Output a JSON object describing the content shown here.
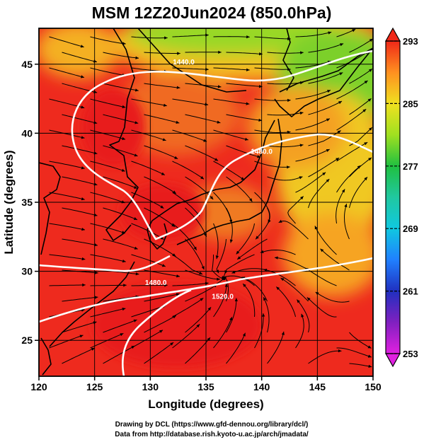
{
  "title": "MSM 12Z20Jun2024 (850.0hPa)",
  "map": {
    "xlabel": "Longitude (degrees)",
    "ylabel": "Latitude  (degrees)",
    "xlim": [
      120,
      150
    ],
    "ylim": [
      22.4,
      47.6
    ],
    "xticks": [
      120,
      125,
      130,
      135,
      140,
      145,
      150
    ],
    "yticks": [
      25,
      30,
      35,
      40,
      45
    ],
    "grid": true,
    "fill_field": "temperature (K)",
    "colors": {
      "cold": "#c000c0",
      "cool": "#0040ff",
      "mid": "#20c040",
      "warm": "#ffd000",
      "hot": "#ee2a1e",
      "contour": "#ffffff",
      "streamline": "#000000"
    }
  },
  "colorbar": {
    "min": 253,
    "max": 293,
    "ticks": [
      293,
      285,
      277,
      269,
      261,
      253
    ],
    "stops": [
      {
        "value": 253,
        "color": "#e020e0"
      },
      {
        "value": 257,
        "color": "#8020c0"
      },
      {
        "value": 261,
        "color": "#2030c0"
      },
      {
        "value": 265,
        "color": "#2080ff"
      },
      {
        "value": 269,
        "color": "#10c8e0"
      },
      {
        "value": 273,
        "color": "#20c8a0"
      },
      {
        "value": 277,
        "color": "#20c040"
      },
      {
        "value": 281,
        "color": "#a0e020"
      },
      {
        "value": 285,
        "color": "#f0e020"
      },
      {
        "value": 289,
        "color": "#ff9020"
      },
      {
        "value": 293,
        "color": "#f02818"
      }
    ]
  },
  "contours": [
    {
      "label": "1440.0",
      "lon": 133.0,
      "lat": 45.0
    },
    {
      "label": "1480.0",
      "lon": 140.0,
      "lat": 38.5
    },
    {
      "label": "1480.0",
      "lon": 130.5,
      "lat": 29.0
    },
    {
      "label": "1520.0",
      "lon": 136.5,
      "lat": 28.0
    }
  ],
  "credits": {
    "line1": "Drawing by DCL (https://www.gfd-dennou.org/library/dcl/)",
    "line2": "Data from http://database.rish.kyoto-u.ac.jp/arch/jmadata/"
  }
}
